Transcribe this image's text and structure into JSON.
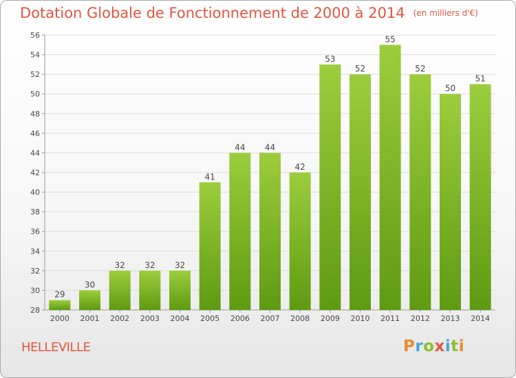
{
  "header": {
    "title": "Dotation Globale de Fonctionnement de 2000 à 2014",
    "unit": "(en milliers d'€)"
  },
  "footer": {
    "place": "HELLEVILLE",
    "logo": [
      "P",
      "r",
      "o",
      "x",
      "i",
      "t",
      "i"
    ]
  },
  "colors": {
    "title": "#e2553f",
    "bar_top": "#9ccd3c",
    "bar_bottom": "#5e9a12",
    "logo": [
      "#e98a2b",
      "#4aa3df",
      "#8cbf2a",
      "#e2553f",
      "#4aa3df",
      "#8cbf2a",
      "#e98a2b"
    ]
  },
  "chart_data": {
    "type": "bar",
    "categories": [
      "2000",
      "2001",
      "2002",
      "2003",
      "2004",
      "2005",
      "2006",
      "2007",
      "2008",
      "2009",
      "2010",
      "2011",
      "2012",
      "2013",
      "2014"
    ],
    "values": [
      29,
      30,
      32,
      32,
      32,
      41,
      44,
      44,
      42,
      53,
      52,
      55,
      52,
      50,
      51
    ],
    "ylim": [
      28,
      56
    ],
    "yticks": [
      28,
      30,
      32,
      34,
      36,
      38,
      40,
      42,
      44,
      46,
      48,
      50,
      52,
      54,
      56
    ],
    "grid": true
  }
}
